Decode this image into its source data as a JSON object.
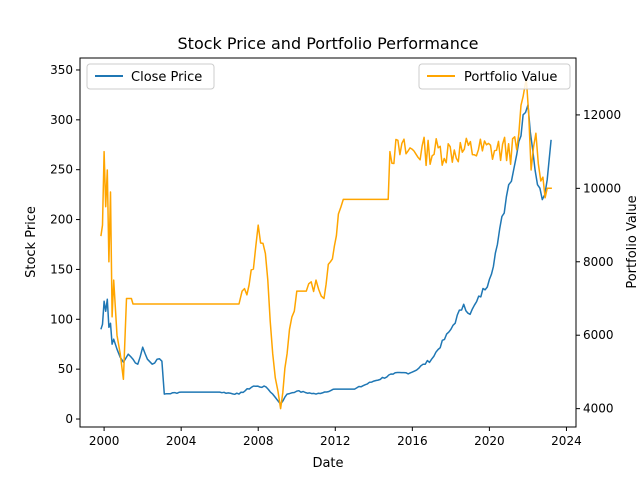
{
  "chart_data": {
    "type": "line",
    "title": "Stock Price and Portfolio Performance",
    "xlabel": "Date",
    "ylabel": "Stock Price",
    "y2label": "Portfolio Value",
    "xlim": [
      "1998-10-01",
      "2024-06-30"
    ],
    "ylim": [
      -8,
      362
    ],
    "y2lim": [
      3500,
      13550
    ],
    "x_ticks": [
      "2000",
      "2004",
      "2008",
      "2012",
      "2016",
      "2020",
      "2024"
    ],
    "y_ticks": [
      "0",
      "50",
      "100",
      "150",
      "200",
      "250",
      "300",
      "350"
    ],
    "y2_ticks": [
      "4000",
      "6000",
      "8000",
      "10000",
      "12000"
    ],
    "legend_left": {
      "placement": "upper-left"
    },
    "legend_right": {
      "placement": "upper-right"
    },
    "grid": false,
    "colors": {
      "close": "#1f77b4",
      "portfolio": "#ffa500"
    },
    "series": [
      {
        "name": "Close Price",
        "axis": "left",
        "color": "#1f77b4",
        "points": [
          [
            "1999-11-01",
            90
          ],
          [
            "1999-12-01",
            95
          ],
          [
            "2000-01-01",
            118
          ],
          [
            "2000-02-01",
            108
          ],
          [
            "2000-03-01",
            120
          ],
          [
            "2000-04-01",
            92
          ],
          [
            "2000-05-01",
            96
          ],
          [
            "2000-06-01",
            75
          ],
          [
            "2000-07-01",
            80
          ],
          [
            "2000-09-01",
            70
          ],
          [
            "2000-11-01",
            62
          ],
          [
            "2001-01-01",
            57
          ],
          [
            "2001-04-01",
            65
          ],
          [
            "2001-07-01",
            60
          ],
          [
            "2001-10-01",
            55
          ],
          [
            "2002-01-01",
            72
          ],
          [
            "2002-04-01",
            60
          ],
          [
            "2002-07-01",
            55
          ],
          [
            "2002-10-01",
            60
          ],
          [
            "2003-01-01",
            58
          ],
          [
            "2003-02-15",
            25
          ],
          [
            "2004-01-01",
            27
          ],
          [
            "2005-01-01",
            27
          ],
          [
            "2006-01-01",
            27
          ],
          [
            "2007-01-01",
            25
          ],
          [
            "2007-10-01",
            33
          ],
          [
            "2008-06-01",
            32
          ],
          [
            "2008-10-01",
            25
          ],
          [
            "2009-03-01",
            15
          ],
          [
            "2009-07-01",
            25
          ],
          [
            "2010-01-01",
            28
          ],
          [
            "2011-01-01",
            25
          ],
          [
            "2012-01-01",
            30
          ],
          [
            "2013-01-01",
            30
          ],
          [
            "2014-01-01",
            38
          ],
          [
            "2015-01-01",
            45
          ],
          [
            "2016-01-01",
            47
          ],
          [
            "2017-01-01",
            60
          ],
          [
            "2018-01-01",
            90
          ],
          [
            "2018-09-01",
            115
          ],
          [
            "2019-01-01",
            105
          ],
          [
            "2020-01-01",
            140
          ],
          [
            "2020-06-01",
            175
          ],
          [
            "2021-01-01",
            235
          ],
          [
            "2021-06-01",
            265
          ],
          [
            "2021-10-01",
            305
          ],
          [
            "2022-01-01",
            315
          ],
          [
            "2022-04-01",
            270
          ],
          [
            "2022-07-01",
            235
          ],
          [
            "2022-10-01",
            220
          ],
          [
            "2023-01-01",
            240
          ],
          [
            "2023-03-15",
            280
          ]
        ]
      },
      {
        "name": "Portfolio Value",
        "axis": "right",
        "color": "#ffa500",
        "points": [
          [
            "1999-11-01",
            8700
          ],
          [
            "1999-12-01",
            9000
          ],
          [
            "2000-01-01",
            11000
          ],
          [
            "2000-02-01",
            9500
          ],
          [
            "2000-03-01",
            10500
          ],
          [
            "2000-04-01",
            8000
          ],
          [
            "2000-05-01",
            9900
          ],
          [
            "2000-06-01",
            6500
          ],
          [
            "2000-07-01",
            7500
          ],
          [
            "2000-09-01",
            6000
          ],
          [
            "2000-11-01",
            5500
          ],
          [
            "2001-01-01",
            4800
          ],
          [
            "2001-03-01",
            7000
          ],
          [
            "2001-06-01",
            7000
          ],
          [
            "2001-07-01",
            6850
          ],
          [
            "2007-01-01",
            6850
          ],
          [
            "2007-03-01",
            7200
          ],
          [
            "2007-06-01",
            7100
          ],
          [
            "2007-10-01",
            7800
          ],
          [
            "2008-01-01",
            9000
          ],
          [
            "2008-04-01",
            8500
          ],
          [
            "2008-07-01",
            7500
          ],
          [
            "2008-10-01",
            5500
          ],
          [
            "2009-03-01",
            4000
          ],
          [
            "2009-07-01",
            5500
          ],
          [
            "2009-10-01",
            6500
          ],
          [
            "2010-01-01",
            7200
          ],
          [
            "2010-07-01",
            7200
          ],
          [
            "2011-01-01",
            7500
          ],
          [
            "2011-06-01",
            7000
          ],
          [
            "2011-10-01",
            8000
          ],
          [
            "2012-03-01",
            9300
          ],
          [
            "2012-06-01",
            9700
          ],
          [
            "2014-10-01",
            9700
          ],
          [
            "2014-11-01",
            11000
          ],
          [
            "2021-06-01",
            11050
          ],
          [
            "2021-10-01",
            12500
          ],
          [
            "2021-12-01",
            13000
          ],
          [
            "2022-03-01",
            10500
          ],
          [
            "2022-06-01",
            11500
          ],
          [
            "2022-09-01",
            10200
          ],
          [
            "2023-01-01",
            10000
          ],
          [
            "2023-04-01",
            10000
          ]
        ]
      }
    ]
  }
}
